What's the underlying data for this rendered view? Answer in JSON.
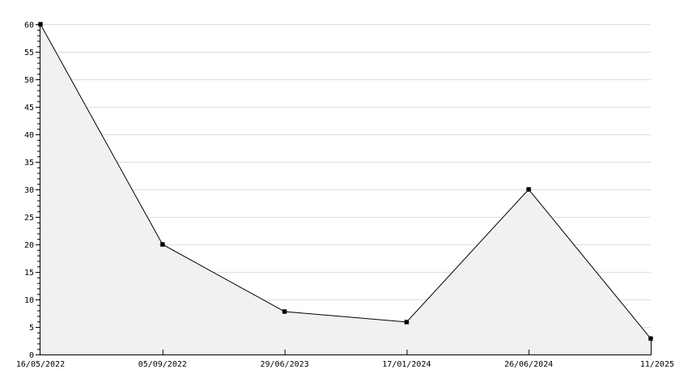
{
  "chart_data": {
    "type": "area",
    "title": "",
    "xlabel": "",
    "ylabel": "",
    "categories": [
      "16/05/2022",
      "05/09/2022",
      "29/06/2023",
      "17/01/2024",
      "26/06/2024",
      "11/2025"
    ],
    "series": [
      {
        "values": [
          60,
          20,
          7.8,
          5.9,
          30,
          2.9
        ]
      }
    ],
    "ylim": [
      0,
      60
    ],
    "yticks": [
      0,
      5,
      10,
      15,
      20,
      25,
      30,
      35,
      40,
      45,
      50,
      55,
      60
    ],
    "grid": true,
    "colors": {
      "fill": "#f1f1f1",
      "line": "#000000",
      "grid": "#dddddd"
    }
  }
}
